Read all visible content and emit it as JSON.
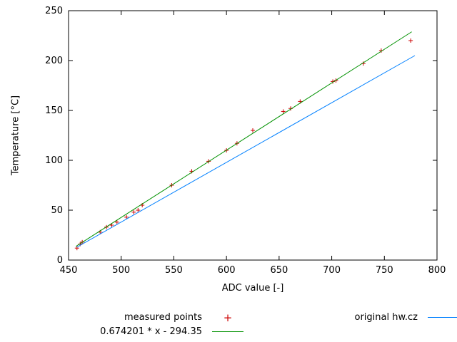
{
  "chart_data": {
    "type": "scatter",
    "title": "",
    "xlabel": "ADC value [-]",
    "ylabel": "Temperature [°C]",
    "xlim": [
      450,
      800
    ],
    "ylim": [
      0,
      250
    ],
    "xticks": [
      450,
      500,
      550,
      600,
      650,
      700,
      750,
      800
    ],
    "yticks": [
      0,
      50,
      100,
      150,
      200,
      250
    ],
    "grid": false,
    "legend_position": "below-plot",
    "series": [
      {
        "name": "measured-points",
        "type": "scatter",
        "marker": "plus",
        "color": "#cc0000",
        "legend_label": "measured points",
        "points": [
          [
            458,
            12
          ],
          [
            461,
            16
          ],
          [
            463,
            18
          ],
          [
            480,
            28
          ],
          [
            486,
            33
          ],
          [
            491,
            35
          ],
          [
            496,
            38
          ],
          [
            505,
            43
          ],
          [
            512,
            48
          ],
          [
            516,
            50
          ],
          [
            520,
            55
          ],
          [
            548,
            75
          ],
          [
            567,
            89
          ],
          [
            583,
            99
          ],
          [
            600,
            110
          ],
          [
            610,
            117
          ],
          [
            625,
            130
          ],
          [
            654,
            149
          ],
          [
            661,
            152
          ],
          [
            670,
            159
          ],
          [
            701,
            179
          ],
          [
            704,
            180
          ],
          [
            730,
            197
          ],
          [
            747,
            210
          ],
          [
            775,
            220
          ]
        ]
      },
      {
        "name": "fit-line",
        "type": "line",
        "color": "#009100",
        "legend_label": "0.674201 * x - 294.35",
        "slope": 0.674201,
        "intercept": -294.35,
        "x_range": [
          457,
          776
        ]
      },
      {
        "name": "original-hwcz-line",
        "type": "line",
        "color": "#0080ff",
        "legend_label": "original hw.cz",
        "points": [
          [
            458,
            13
          ],
          [
            779,
            205
          ]
        ]
      }
    ]
  },
  "plot": {
    "background": "#ffffff",
    "border_color": "#000000"
  }
}
